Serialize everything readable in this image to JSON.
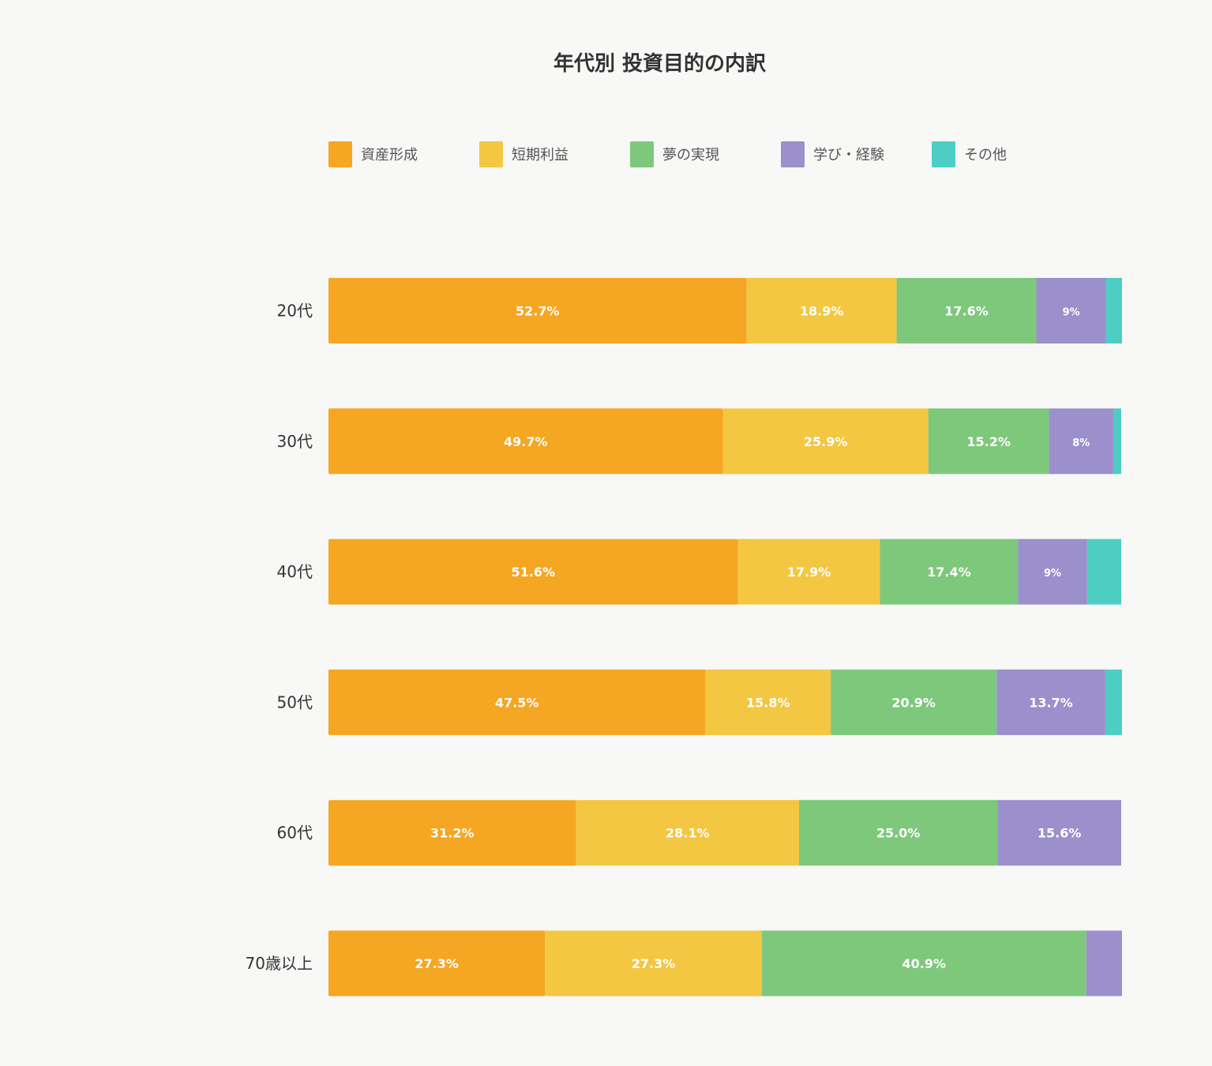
{
  "chart_data": {
    "type": "bar",
    "orientation": "horizontal",
    "stacked": true,
    "title": "年代別 投資目的の内訳",
    "categories": [
      "20代",
      "30代",
      "40代",
      "50代",
      "60代",
      "70歳以上"
    ],
    "series": [
      {
        "name": "資産形成",
        "color": "#f5a623",
        "values": [
          52.7,
          49.7,
          51.6,
          47.5,
          31.2,
          27.3
        ],
        "labels": [
          "52.7%",
          "49.7%",
          "51.6%",
          "47.5%",
          "31.2%",
          "27.3%"
        ]
      },
      {
        "name": "短期利益",
        "color": "#f3c742",
        "values": [
          18.9,
          25.9,
          17.9,
          15.8,
          28.1,
          27.3
        ],
        "labels": [
          "18.9%",
          "25.9%",
          "17.9%",
          "15.8%",
          "28.1%",
          "27.3%"
        ]
      },
      {
        "name": "夢の実現",
        "color": "#7ec87c",
        "values": [
          17.6,
          15.2,
          17.4,
          20.9,
          25.0,
          40.9
        ],
        "labels": [
          "17.6%",
          "15.2%",
          "17.4%",
          "20.9%",
          "25.0%",
          "40.9%"
        ]
      },
      {
        "name": "学び・経験",
        "color": "#9b8fcc",
        "values": [
          8.8,
          8.1,
          8.7,
          13.7,
          15.6,
          4.5
        ],
        "labels": [
          "9%",
          "8%",
          "9%",
          "13.7%",
          "15.6%",
          ""
        ]
      },
      {
        "name": "その他",
        "color": "#4ecdc4",
        "values": [
          2.0,
          1.0,
          4.3,
          2.1,
          0.0,
          0.0
        ],
        "labels": [
          "",
          "",
          "",
          "",
          "",
          ""
        ]
      }
    ],
    "xlim": [
      0,
      100
    ],
    "grid": false,
    "legend_position": "top"
  }
}
